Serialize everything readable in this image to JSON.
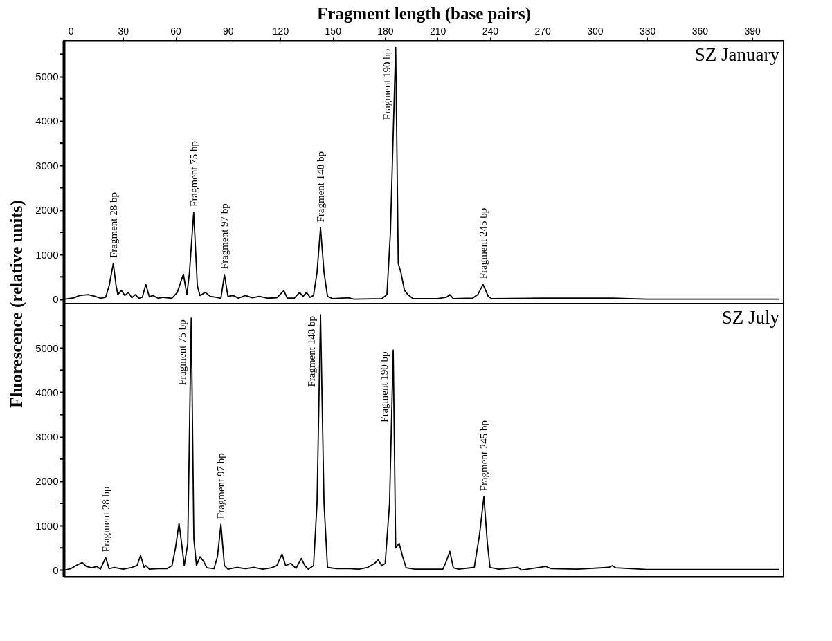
{
  "chart_data": [
    {
      "type": "line",
      "xlabel": "Fragment length (base pairs)",
      "ylabel": "Fluorescence (relative units)",
      "xlim": [
        -4,
        408
      ],
      "xticks": [
        0,
        30,
        60,
        90,
        120,
        150,
        180,
        210,
        240,
        270,
        300,
        330,
        360,
        390
      ],
      "ylim": [
        -100,
        5800
      ],
      "yticks": [
        0,
        {
          "value": 500,
          "label": null
        },
        1000,
        {
          "value": 1500,
          "label": null
        },
        2000,
        {
          "value": 2500,
          "label": null
        },
        3000,
        {
          "value": 3500,
          "label": null
        },
        4000,
        {
          "value": 4500,
          "label": null
        },
        5000,
        {
          "value": 5500,
          "label": null
        }
      ],
      "x": [
        -3,
        2,
        5,
        10,
        14,
        17,
        20,
        22,
        24.4,
        26,
        27,
        29,
        31,
        33,
        35,
        37,
        39,
        41,
        43,
        45,
        47,
        50,
        53,
        58,
        61,
        64.5,
        66.5,
        68,
        70.4,
        72.5,
        74,
        77,
        80,
        83,
        86,
        88,
        90,
        93,
        96,
        100,
        104,
        108,
        113,
        118,
        122,
        124,
        128,
        131,
        133,
        135,
        137,
        139,
        141,
        143,
        145,
        147,
        150,
        159,
        162,
        178,
        181,
        183,
        186,
        187.5,
        189,
        191,
        193,
        196,
        210,
        215,
        217,
        219,
        230,
        233,
        236,
        239,
        241,
        270,
        294,
        310,
        330,
        405
      ],
      "series": [
        {
          "color": "#000000",
          "values": [
            0,
            30,
            80,
            100,
            60,
            20,
            40,
            300,
            800,
            300,
            100,
            200,
            80,
            150,
            30,
            100,
            20,
            40,
            330,
            50,
            80,
            20,
            40,
            20,
            150,
            560,
            100,
            600,
            1950,
            300,
            80,
            150,
            60,
            40,
            20,
            550,
            60,
            80,
            20,
            80,
            30,
            60,
            20,
            30,
            190,
            20,
            20,
            150,
            60,
            150,
            40,
            80,
            600,
            1600,
            600,
            60,
            10,
            30,
            0,
            10,
            100,
            1500,
            5650,
            800,
            600,
            200,
            100,
            10,
            10,
            40,
            100,
            10,
            20,
            100,
            330,
            60,
            10,
            20,
            20,
            20,
            0,
            0
          ]
        }
      ],
      "annotations": [
        "SZ January",
        {
          "text": "Fragment  28 bp",
          "x": 24.4,
          "y": 800
        },
        {
          "text": "Fragment 75 bp",
          "x": 70.4,
          "y": 1950
        },
        {
          "text": "Fragment 97 bp",
          "x": 88,
          "y": 550
        },
        {
          "text": "Fragment 148 bp",
          "x": 143,
          "y": 1600
        },
        {
          "text": "Fragment 190 bp",
          "x": 186,
          "y": 5650
        },
        {
          "text": "Fragment  245 bp",
          "x": 236,
          "y": 330
        }
      ],
      "grid": false,
      "line_style": "solid",
      "marker": "none"
    },
    {
      "type": "line",
      "xlim": [
        -4,
        408
      ],
      "ylim": [
        -150,
        6000
      ],
      "tick_labels": "y",
      "yticks": [
        0,
        {
          "value": 500,
          "label": null
        },
        1000,
        {
          "value": 1500,
          "label": null
        },
        2000,
        {
          "value": 2500,
          "label": null
        },
        3000,
        {
          "value": 3500,
          "label": null
        },
        4000,
        {
          "value": 4500,
          "label": null
        },
        5000,
        {
          "value": 5500,
          "label": null
        }
      ],
      "x": [
        -3,
        0,
        3,
        6.5,
        9,
        12,
        15,
        17,
        20,
        22,
        25,
        30,
        35,
        38,
        40,
        42,
        43,
        45,
        50,
        55,
        58,
        60,
        62,
        63.5,
        65,
        67,
        69,
        70.5,
        72,
        74,
        76,
        78,
        82,
        84,
        86,
        88,
        90,
        95,
        100,
        105,
        110,
        115,
        118,
        121,
        123,
        126,
        129,
        132,
        134,
        136,
        139,
        141,
        143,
        145,
        147,
        152,
        160,
        165,
        170,
        174,
        176,
        178,
        180,
        182.5,
        184.6,
        186,
        188,
        190,
        192,
        197,
        213,
        215,
        217,
        219,
        222,
        231,
        234,
        236.5,
        238.5,
        240,
        245,
        256,
        258,
        272,
        275,
        290,
        308,
        310,
        312,
        330,
        405
      ],
      "series": [
        {
          "color": "#000000",
          "values": [
            0,
            30,
            100,
            170,
            80,
            50,
            80,
            20,
            280,
            30,
            60,
            20,
            60,
            100,
            330,
            60,
            100,
            20,
            30,
            30,
            100,
            500,
            1050,
            600,
            100,
            600,
            5670,
            700,
            100,
            300,
            200,
            50,
            30,
            300,
            1030,
            100,
            20,
            60,
            30,
            60,
            20,
            50,
            100,
            360,
            100,
            150,
            40,
            260,
            100,
            20,
            100,
            1500,
            5750,
            1500,
            60,
            30,
            30,
            20,
            60,
            150,
            230,
            100,
            150,
            1500,
            4950,
            500,
            600,
            300,
            50,
            20,
            20,
            200,
            420,
            50,
            20,
            60,
            800,
            1650,
            600,
            60,
            20,
            60,
            0,
            80,
            30,
            20,
            60,
            100,
            50,
            10,
            10
          ]
        }
      ],
      "annotations": [
        "SZ July",
        {
          "text": "Fragment 28 bp",
          "x": 20,
          "y": 280
        },
        {
          "text": "Fragment 75 bp",
          "x": 69,
          "y": 5670
        },
        {
          "text": "Fragment 97 bp",
          "x": 86,
          "y": 1030
        },
        {
          "text": "Fragment 148 bp",
          "x": 143,
          "y": 5750
        },
        {
          "text": "Fragment 190 bp",
          "x": 184.6,
          "y": 4950
        },
        {
          "text": "Fragment 245 bp",
          "x": 236.5,
          "y": 1650
        }
      ],
      "grid": false,
      "line_style": "solid",
      "marker": "none"
    }
  ]
}
